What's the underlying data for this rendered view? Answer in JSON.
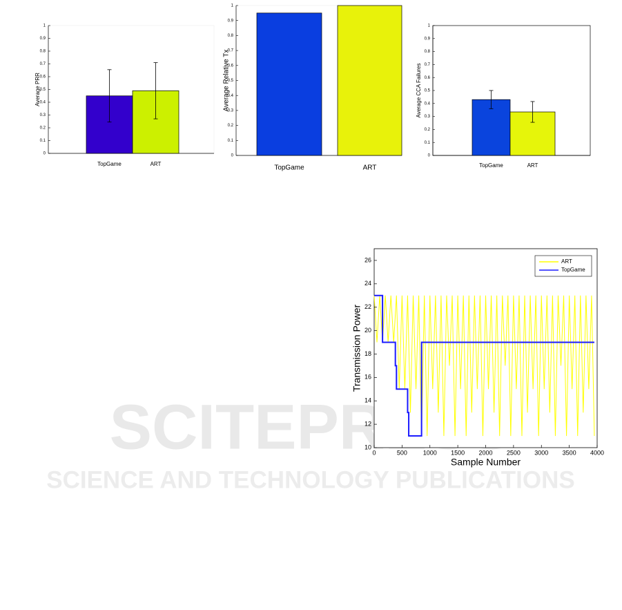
{
  "chart_data": [
    {
      "type": "bar",
      "ylabel": "Average PRR",
      "categories": [
        "TopGame",
        "ART"
      ],
      "values": [
        0.45,
        0.49
      ],
      "errors": [
        0.205,
        0.22
      ],
      "colors": [
        "#3300cc",
        "#ccf000"
      ],
      "ylim": [
        0,
        1
      ],
      "yticks": [
        0,
        0.1,
        0.2,
        0.3,
        0.4,
        0.5,
        0.6,
        0.7,
        0.8,
        0.9,
        1
      ]
    },
    {
      "type": "bar",
      "ylabel": "Average Relative Tx",
      "categories": [
        "TopGame",
        "ART"
      ],
      "values": [
        0.95,
        1.0
      ],
      "colors": [
        "#0a3ee0",
        "#e8f20a"
      ],
      "ylim": [
        0,
        1
      ],
      "yticks": [
        0,
        0.1,
        0.2,
        0.3,
        0.4,
        0.5,
        0.6,
        0.7,
        0.8,
        0.9,
        1
      ]
    },
    {
      "type": "bar",
      "ylabel": "Average CCA Failures",
      "categories": [
        "TopGame",
        "ART"
      ],
      "values": [
        0.43,
        0.335
      ],
      "errors": [
        0.07,
        0.08
      ],
      "colors": [
        "#0a44dd",
        "#e6f50a"
      ],
      "ylim": [
        0,
        1
      ],
      "yticks": [
        0,
        0.1,
        0.2,
        0.3,
        0.4,
        0.5,
        0.6,
        0.7,
        0.8,
        0.9,
        1
      ]
    },
    {
      "type": "line",
      "xlabel": "Sample Number",
      "ylabel": "Transmission Power",
      "legend": "upper right",
      "xlim": [
        0,
        4000
      ],
      "ylim": [
        10,
        27
      ],
      "xticks": [
        0,
        500,
        1000,
        1500,
        2000,
        2500,
        3000,
        3500,
        4000
      ],
      "yticks": [
        10,
        12,
        14,
        16,
        18,
        20,
        22,
        24,
        26
      ],
      "series": [
        {
          "name": "ART",
          "color": "#ffff00",
          "x": [
            0,
            50,
            100,
            150,
            200,
            250,
            300,
            350,
            400,
            450,
            500,
            550,
            600,
            650,
            700,
            750,
            800,
            850,
            900,
            950,
            1000,
            1050,
            1100,
            1150,
            1200,
            1250,
            1300,
            1350,
            1400,
            1450,
            1500,
            1550,
            1600,
            1650,
            1700,
            1750,
            1800,
            1850,
            1900,
            1950,
            2000,
            2050,
            2100,
            2150,
            2200,
            2250,
            2300,
            2350,
            2400,
            2450,
            2500,
            2550,
            2600,
            2650,
            2700,
            2750,
            2800,
            2850,
            2900,
            2950,
            3000,
            3050,
            3100,
            3150,
            3200,
            3250,
            3300,
            3350,
            3400,
            3450,
            3500,
            3550,
            3600,
            3650,
            3700,
            3750,
            3800,
            3850,
            3900,
            3950
          ],
          "values": [
            23,
            19,
            23,
            19,
            23,
            19,
            23,
            19,
            23,
            15,
            23,
            15,
            23,
            13,
            23,
            15,
            23,
            11,
            23,
            11,
            23,
            15,
            23,
            13,
            23,
            11,
            23,
            17,
            23,
            11,
            23,
            15,
            23,
            11,
            23,
            13,
            23,
            15,
            23,
            11,
            23,
            15,
            23,
            13,
            23,
            11,
            23,
            17,
            23,
            11,
            23,
            15,
            23,
            11,
            23,
            13,
            23,
            15,
            23,
            11,
            23,
            15,
            23,
            13,
            23,
            11,
            23,
            17,
            23,
            11,
            23,
            15,
            23,
            11,
            23,
            13,
            23,
            15,
            23,
            11
          ]
        },
        {
          "name": "TopGame",
          "color": "#1a1aff",
          "x": [
            0,
            150,
            150,
            380,
            380,
            400,
            400,
            600,
            600,
            620,
            620,
            850,
            850,
            3950
          ],
          "values": [
            23,
            23,
            19,
            19,
            17,
            17,
            15,
            15,
            13,
            13,
            11,
            11,
            19,
            19
          ]
        }
      ]
    }
  ],
  "watermark": {
    "title": "SCITEPRESS",
    "subtitle": "SCIENCE AND TECHNOLOGY PUBLICATIONS"
  }
}
